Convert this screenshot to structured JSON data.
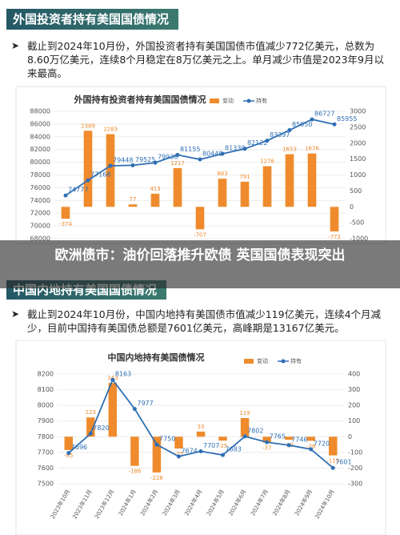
{
  "sections": [
    {
      "heading": "外国投资者持有美国国债情况",
      "text": "截止到2024年10月份，外国投资者持有美国国债市值减少772亿美元，总数为8.60万亿美元，连续8个月稳定在8万亿美元之上。单月减少市值是2023年9月以来最高。"
    },
    {
      "heading": "中国内地持有美国国债情况",
      "text": "截止到2024年10月份，中国内地持有美国债市值减少119亿美元，连续4个月减少，目前中国持有美国债总额是7601亿美元，高峰期是13167亿美元。"
    }
  ],
  "overlay_title": "欧洲债市：油价回落推升欧债 英国国债表现突出",
  "chart_data": [
    {
      "type": "bar_line",
      "title": "外国持有投资者持有美国国债情况",
      "categories": [
        null,
        null,
        null,
        null,
        null,
        null,
        null,
        null,
        null,
        null,
        null,
        null,
        null
      ],
      "series": [
        {
          "name": "变动",
          "color": "#ef8b2c",
          "axis": "y2",
          "values": [
            -374,
            2389,
            2283,
            77,
            413,
            1217,
            -707,
            883,
            791,
            1276,
            1653,
            1676,
            -772
          ]
        },
        {
          "name": "持有",
          "color": "#2e6fb5",
          "values": [
            74777,
            77168,
            79448,
            79525,
            79938,
            81155,
            80448,
            81330,
            82122,
            83397,
            85050,
            86727,
            85955
          ]
        }
      ],
      "ylim": [
        68000,
        88000
      ],
      "yticks": [
        68000,
        70000,
        72000,
        74000,
        76000,
        78000,
        80000,
        82000,
        84000,
        86000,
        88000
      ],
      "y2lim": [
        -1000,
        3000
      ],
      "y2ticks": [
        -1000,
        -500,
        0,
        500,
        1000,
        1500,
        2000,
        2500,
        3000
      ],
      "grid": true
    },
    {
      "type": "bar_line",
      "title": "中国内地持有美国债情况",
      "categories": [
        "2023年10月",
        "2023年11月",
        "2023年12月",
        "2024年1月",
        "2024年2月",
        "2024年3月",
        "2024年4月",
        "2024年5月",
        "2024年6月",
        "2024年7月",
        "2024年8月",
        "2024年9月",
        "2024年10月"
      ],
      "series": [
        {
          "name": "变动",
          "color": "#ef8b2c",
          "axis": "y2",
          "values": [
            -85,
            123,
            343,
            -186,
            -228,
            -75,
            33,
            -25,
            119,
            -37,
            -19,
            -26,
            -119
          ]
        },
        {
          "name": "持有",
          "color": "#2e6fb5",
          "values": [
            7696,
            7820,
            8163,
            7977,
            7750,
            7674,
            7707,
            7683,
            7802,
            7765,
            7746,
            7720,
            7601
          ]
        }
      ],
      "ylim": [
        7500,
        8200
      ],
      "yticks": [
        7500,
        7600,
        7700,
        7800,
        7900,
        8000,
        8100,
        8200
      ],
      "y2lim": [
        -300,
        400
      ],
      "y2ticks": [
        -300,
        -200,
        -100,
        0,
        100,
        200,
        300,
        400
      ],
      "grid": true
    }
  ]
}
